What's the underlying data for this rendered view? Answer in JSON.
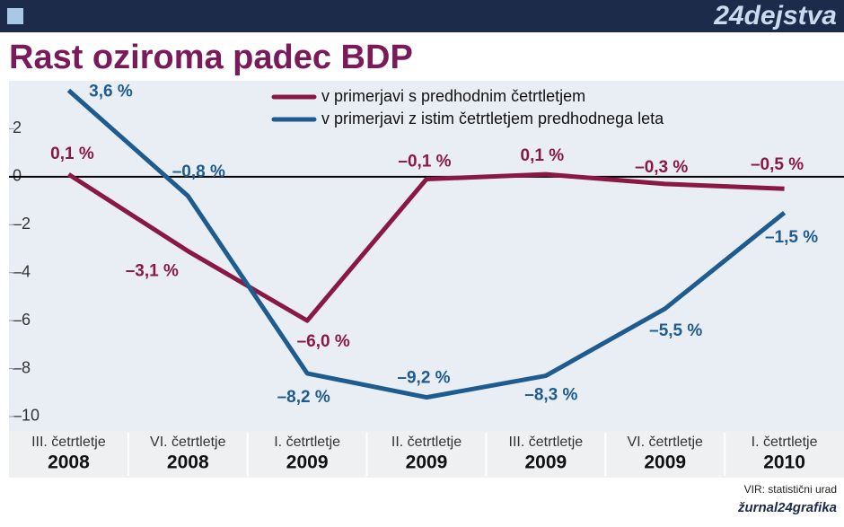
{
  "header": {
    "logo": "24dejstva"
  },
  "chart_data": {
    "type": "line",
    "title": "Rast oziroma padec BDP",
    "categories": [
      "III. četrtletje",
      "VI. četrtletje",
      "I. četrtletje",
      "II. četrtletje",
      "III. četrtletje",
      "VI. četrtletje",
      "I. četrtletje"
    ],
    "category_years": [
      "2008",
      "2008",
      "2009",
      "2009",
      "2009",
      "2009",
      "2010"
    ],
    "series": [
      {
        "name": "v primerjavi s predhodnim četrtletjem",
        "color": "#8a1845",
        "values": [
          0.1,
          -3.1,
          -6.0,
          -0.1,
          0.1,
          -0.3,
          -0.5
        ],
        "value_labels": [
          "0,1 %",
          "–3,1 %",
          "–6,0 %",
          "–0,1 %",
          "0,1 %",
          "–0,3 %",
          "–0,5 %"
        ]
      },
      {
        "name": "v primerjavi z istim četrtletjem predhodnega leta",
        "color": "#1e5b8e",
        "values": [
          3.6,
          -0.8,
          -8.2,
          -9.2,
          -8.3,
          -5.5,
          -1.5
        ],
        "value_labels": [
          "3,6 %",
          "–0,8 %",
          "–8,2 %",
          "–9,2 %",
          "–8,3 %",
          "–5,5 %",
          "–1,5 %"
        ]
      }
    ],
    "ylim": [
      -10.6,
      4
    ],
    "yticks": [
      2,
      0,
      {
        "value": -2,
        "label": "–2"
      },
      {
        "value": -4,
        "label": "–4"
      },
      {
        "value": -6,
        "label": "–6"
      },
      {
        "value": -8,
        "label": "–8"
      },
      {
        "value": -10,
        "label": "–10"
      }
    ],
    "grid": false,
    "source": "VIR: statistični urad",
    "credit": "žurnal24grafika"
  }
}
